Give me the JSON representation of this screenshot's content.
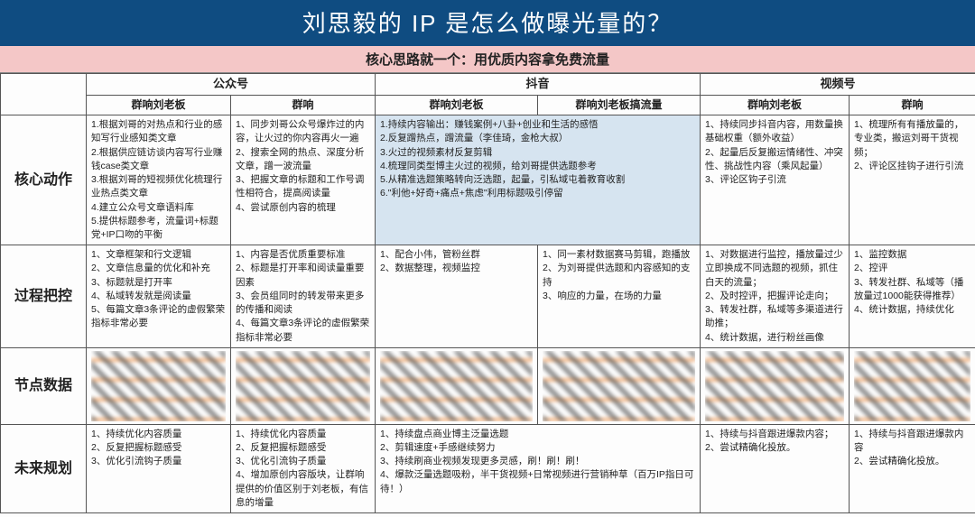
{
  "colors": {
    "title_bg": "#0f4c81",
    "title_fg": "#ffffff",
    "sub_bg": "#f4c7c7",
    "highlight_bg": "#d6e4f0",
    "border": "#555555"
  },
  "title": "刘思毅的 IP 是怎么做曝光量的？",
  "subtitle": "核心思路就一个：用优质内容拿免费流量",
  "platforms": [
    {
      "name": "公众号",
      "span": 2,
      "subs": [
        "群响刘老板",
        "群响"
      ]
    },
    {
      "name": "抖音",
      "span": 2,
      "subs": [
        "群响刘老板",
        "群响刘老板搞流量"
      ]
    },
    {
      "name": "视频号",
      "span": 2,
      "subs": [
        "群响刘老板",
        "群响"
      ]
    }
  ],
  "rows": [
    {
      "label": "核心动作",
      "cells": [
        "1.根据刘哥的对热点和行业的感知写行业感知类文章\n2.根据供应链访谈内容写行业赚钱case类文章\n3.根据刘哥的短视频优化梳理行业热点类文章\n4.建立公众号文章语料库\n5.提供标题参考，流量词+标题党+IP口吻的平衡",
        "1、同步刘哥公众号爆炸过的内容，让火过的你内容再火一遍\n2、搜索全网的热点、深度分析文章，蹭一波流量\n3、把握文章的标题和工作号调性相符合，提高阅读量\n4、尝试原创内容的梳理",
        "1.持续内容输出：赚钱案例+八卦+创业和生活的感悟\n2.反复蹭热点，蹭流量（李佳琦，金枪大叔）\n3.火过的视频素材反复剪辑\n4.梳理同类型博主火过的视频，给刘哥提供选题参考\n5.从精准选题策略转向泛选题，起量，引私域屯着教育收割\n6.\"利他+好奇+痛点+焦虑\"利用标题吸引停留",
        "",
        "1、持续同步抖音内容，用数量换基础权重（额外收益）\n2、起量后反复搬运情绪性、冲突性、挑战性内容（乘风起量）\n3、评论区钩子引流",
        "1、梳理所有有播放量的，专业类，搬运刘哥干货视频；\n2、评论区挂钩子进行引流"
      ],
      "highlight": [
        false,
        false,
        true,
        true,
        false,
        false
      ],
      "merge34": true
    },
    {
      "label": "过程把控",
      "cells": [
        "1、文章框架和行文逻辑\n2、文章信息量的优化和补充\n3、标题就是打开率\n4、私域转发就是阅读量\n5、每篇文章3条评论的虚假繁荣指标非常必要",
        "1、内容是否优质重要标准\n2、标题是打开率和阅读量重要因素\n3、会员组同时的转发带来更多的传播和阅读\n4、每篇文章3条评论的虚假繁荣指标非常必要",
        "1、配合小伟，管粉丝群\n2、数据整理，视频监控",
        "1、同一素材数据赛马剪辑，跑播放\n2、为刘哥提供选题和内容感知的支持\n3、响应的力量，在场的力量",
        "1、对数据进行监控，播放量过少立即换成不同选题的视频，抓住白天的流量；\n2、及时控评，把握评论走向；\n3、转发社群，私域等多渠道进行助推；\n4、统计数据，进行粉丝画像",
        "1、监控数据\n2、控评\n3、转发社群、私域等（播放量过1000能获得推荐）\n4、统计数据，持续优化"
      ],
      "highlight": [
        false,
        false,
        false,
        false,
        false,
        false
      ]
    },
    {
      "label": "节点数据",
      "blurred": true
    },
    {
      "label": "未来规划",
      "cells": [
        "1、持续优化内容质量\n2、反复把握标题感受\n3、优化引流钩子质量",
        "1、持续优化内容质量\n2、反复把握标题感受\n3、优化引流钩子质量\n4、增加原创内容版块，让群响提供的价值区别于刘老板，有信息的增量",
        "1、持续盘点商业博主泛量选题\n2、剪辑速度+手感继续努力\n3、持续刷商业视频发现更多灵感，刷！刷！刷！\n4、爆款泛量选题吸粉，半干货视频+日常视频进行营销种草（百万IP指日可待！）",
        "",
        "1、持续与抖音跟进爆款内容；\n2、尝试精确化投放。",
        "1、持续与抖音跟进爆款内容\n2、尝试精确化投放。"
      ],
      "highlight": [
        false,
        false,
        false,
        false,
        false,
        false
      ],
      "merge34": true
    }
  ]
}
